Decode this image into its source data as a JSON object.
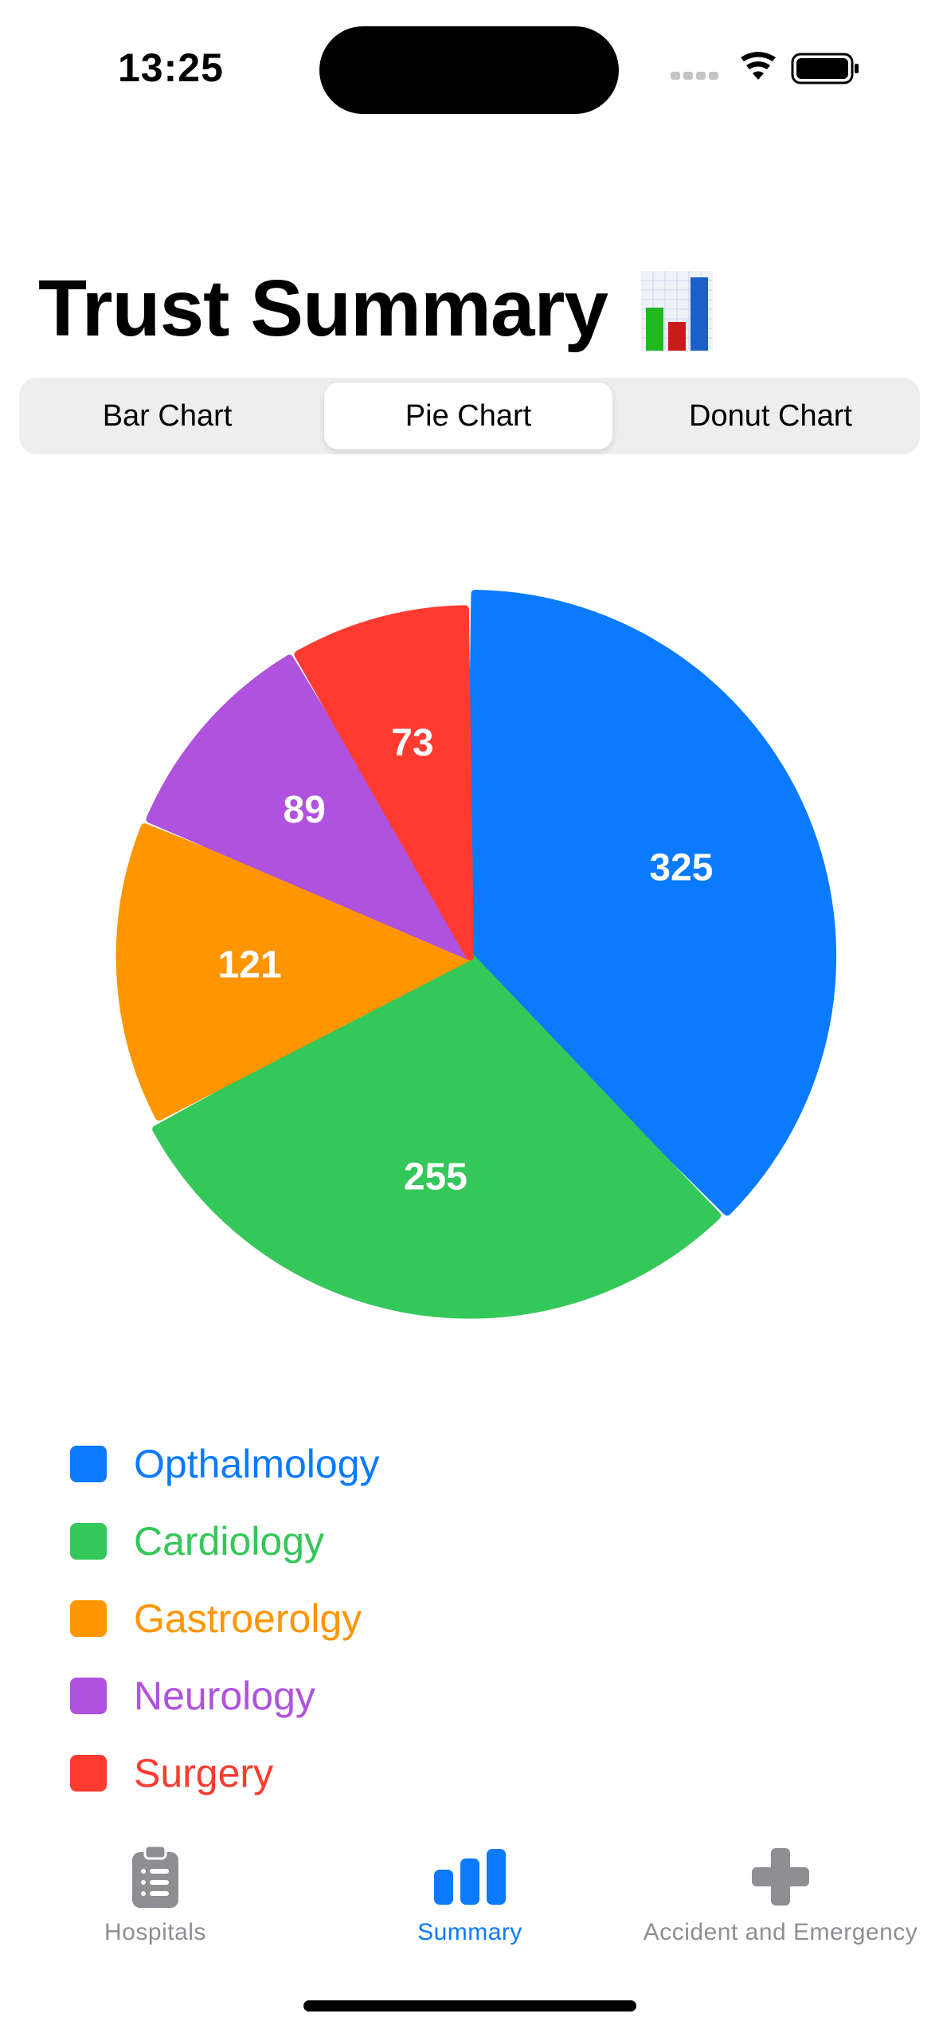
{
  "status_bar": {
    "time": "13:25"
  },
  "page_title": "Trust Summary",
  "title_icon": "bar-chart-emoji",
  "segments": [
    {
      "label": "Bar Chart",
      "selected": false
    },
    {
      "label": "Pie Chart",
      "selected": true
    },
    {
      "label": "Donut Chart",
      "selected": false
    }
  ],
  "chart_data": {
    "type": "pie",
    "categories": [
      "Opthalmology",
      "Cardiology",
      "Gastroerolgy",
      "Neurology",
      "Surgery"
    ],
    "values": [
      325,
      255,
      121,
      89,
      73
    ],
    "colors": [
      "#0a7aff",
      "#34c759",
      "#ff9500",
      "#af52de",
      "#ff3b30"
    ],
    "legend_position": "bottom-left"
  },
  "tab_bar": {
    "active_color": "#0a7aff",
    "inactive_color": "#8e8e93",
    "tabs": [
      {
        "label": "Hospitals",
        "icon": "clipboard-list-icon",
        "active": false
      },
      {
        "label": "Summary",
        "icon": "chart-bar-icon",
        "active": true
      },
      {
        "label": "Accident and Emergency",
        "icon": "cross-icon",
        "active": false
      }
    ]
  }
}
